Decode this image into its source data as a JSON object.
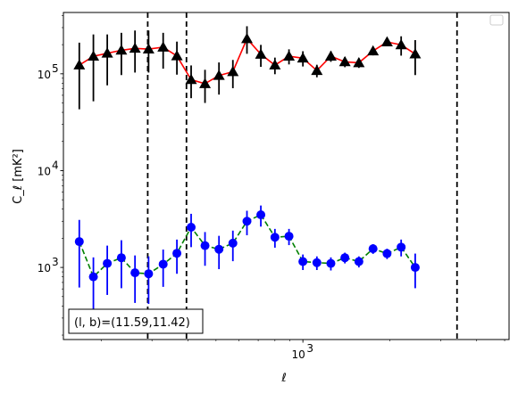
{
  "chart_data": {
    "type": "scatter",
    "xlabel": "ℓ",
    "ylabel": "C_ℓ [mK²]",
    "xscale": "log",
    "yscale": "log",
    "xlim": [
      148,
      5180
    ],
    "ylim": [
      180,
      430000
    ],
    "x_tick_labels": [
      {
        "value": 1000,
        "base": "10",
        "exp": "3"
      }
    ],
    "y_tick_labels": [
      {
        "value": 1000,
        "base": "10",
        "exp": "3"
      },
      {
        "value": 10000,
        "base": "10",
        "exp": "4"
      },
      {
        "value": 100000,
        "base": "10",
        "exp": "5"
      }
    ],
    "legend": {
      "placement": "top-right",
      "entries": []
    },
    "vlines": [
      290,
      395,
      3420
    ],
    "annotation": {
      "text": "(l, b)=(11.59,11.42)",
      "placement": "bottom-left"
    },
    "series": [
      {
        "marker": "triangle",
        "marker_color": "#000000",
        "line_color": "#ff0000",
        "line_style": "solid",
        "err_color": "#000000",
        "points": [
          {
            "x": 168,
            "y": 123000,
            "lo": 43000,
            "hi": 210000
          },
          {
            "x": 188,
            "y": 152000,
            "lo": 52000,
            "hi": 255000
          },
          {
            "x": 210,
            "y": 163000,
            "lo": 76000,
            "hi": 255000
          },
          {
            "x": 235,
            "y": 175000,
            "lo": 97000,
            "hi": 265000
          },
          {
            "x": 262,
            "y": 183000,
            "lo": 103000,
            "hi": 280000
          },
          {
            "x": 292,
            "y": 180000,
            "lo": 103000,
            "hi": 280000
          },
          {
            "x": 328,
            "y": 188000,
            "lo": 113000,
            "hi": 265000
          },
          {
            "x": 366,
            "y": 153000,
            "lo": 98000,
            "hi": 215000
          },
          {
            "x": 410,
            "y": 87000,
            "lo": 56000,
            "hi": 122000
          },
          {
            "x": 458,
            "y": 79000,
            "lo": 50000,
            "hi": 110000
          },
          {
            "x": 512,
            "y": 96000,
            "lo": 61000,
            "hi": 131000
          },
          {
            "x": 572,
            "y": 105000,
            "lo": 71000,
            "hi": 139000
          },
          {
            "x": 640,
            "y": 230000,
            "lo": 161000,
            "hi": 310000
          },
          {
            "x": 715,
            "y": 159000,
            "lo": 118000,
            "hi": 199000
          },
          {
            "x": 800,
            "y": 123000,
            "lo": 99000,
            "hi": 147000
          },
          {
            "x": 895,
            "y": 152000,
            "lo": 125000,
            "hi": 179000
          },
          {
            "x": 1000,
            "y": 145000,
            "lo": 119000,
            "hi": 171000
          },
          {
            "x": 1118,
            "y": 108000,
            "lo": 92000,
            "hi": 124000
          },
          {
            "x": 1250,
            "y": 152000,
            "lo": 133000,
            "hi": 171000
          },
          {
            "x": 1398,
            "y": 133000,
            "lo": 117000,
            "hi": 149000
          },
          {
            "x": 1563,
            "y": 130000,
            "lo": 115000,
            "hi": 145000
          },
          {
            "x": 1750,
            "y": 172000,
            "lo": 155000,
            "hi": 189000
          },
          {
            "x": 1957,
            "y": 213000,
            "lo": 194000,
            "hi": 232000
          },
          {
            "x": 2190,
            "y": 199000,
            "lo": 154000,
            "hi": 244000
          },
          {
            "x": 2450,
            "y": 160000,
            "lo": 97000,
            "hi": 223000
          }
        ]
      },
      {
        "marker": "circle",
        "marker_color": "#0000ff",
        "line_color": "#008000",
        "line_style": "dashed",
        "err_color": "#0000ff",
        "points": [
          {
            "x": 168,
            "y": 1850,
            "lo": 620,
            "hi": 3100
          },
          {
            "x": 188,
            "y": 800,
            "lo": 330,
            "hi": 1270
          },
          {
            "x": 210,
            "y": 1100,
            "lo": 520,
            "hi": 1680
          },
          {
            "x": 235,
            "y": 1260,
            "lo": 610,
            "hi": 1910
          },
          {
            "x": 262,
            "y": 880,
            "lo": 430,
            "hi": 1330
          },
          {
            "x": 292,
            "y": 860,
            "lo": 420,
            "hi": 1300
          },
          {
            "x": 328,
            "y": 1080,
            "lo": 630,
            "hi": 1530
          },
          {
            "x": 366,
            "y": 1400,
            "lo": 860,
            "hi": 1940
          },
          {
            "x": 410,
            "y": 2600,
            "lo": 1620,
            "hi": 3580
          },
          {
            "x": 458,
            "y": 1680,
            "lo": 1040,
            "hi": 2320
          },
          {
            "x": 512,
            "y": 1540,
            "lo": 960,
            "hi": 2120
          },
          {
            "x": 572,
            "y": 1780,
            "lo": 1160,
            "hi": 2400
          },
          {
            "x": 640,
            "y": 3000,
            "lo": 2150,
            "hi": 3850
          },
          {
            "x": 715,
            "y": 3500,
            "lo": 2640,
            "hi": 4360
          },
          {
            "x": 800,
            "y": 2050,
            "lo": 1600,
            "hi": 2500
          },
          {
            "x": 895,
            "y": 2100,
            "lo": 1700,
            "hi": 2500
          },
          {
            "x": 1000,
            "y": 1150,
            "lo": 940,
            "hi": 1360
          },
          {
            "x": 1118,
            "y": 1120,
            "lo": 940,
            "hi": 1300
          },
          {
            "x": 1250,
            "y": 1100,
            "lo": 930,
            "hi": 1270
          },
          {
            "x": 1398,
            "y": 1260,
            "lo": 1100,
            "hi": 1420
          },
          {
            "x": 1563,
            "y": 1150,
            "lo": 1000,
            "hi": 1300
          },
          {
            "x": 1750,
            "y": 1560,
            "lo": 1380,
            "hi": 1740
          },
          {
            "x": 1957,
            "y": 1390,
            "lo": 1220,
            "hi": 1560
          },
          {
            "x": 2190,
            "y": 1620,
            "lo": 1300,
            "hi": 1940
          },
          {
            "x": 2450,
            "y": 1000,
            "lo": 610,
            "hi": 1390
          }
        ]
      }
    ]
  }
}
